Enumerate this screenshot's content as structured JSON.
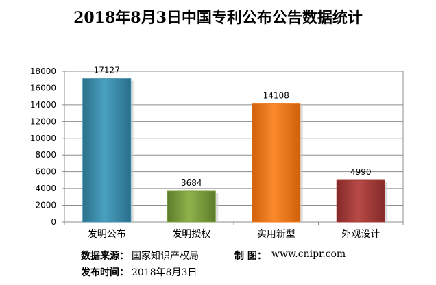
{
  "title": "2018年8月3日中国专利公布公告数据统计",
  "chart_data": {
    "type": "bar",
    "categories": [
      "发明公布",
      "发明授权",
      "实用新型",
      "外观设计"
    ],
    "values": [
      17127,
      3684,
      14108,
      4990
    ],
    "data_labels": [
      "17127",
      "3684",
      "14108",
      "4990"
    ],
    "colors": [
      "#3b8aa8",
      "#7a9e3c",
      "#f07a1a",
      "#a63a38"
    ],
    "ylim": [
      0,
      18000
    ],
    "yticks": [
      0,
      2000,
      4000,
      6000,
      8000,
      10000,
      12000,
      14000,
      16000,
      18000
    ],
    "grid": true,
    "legend": "none"
  },
  "footer": {
    "source_label": "数据来源：",
    "source_value": "国家知识产权局",
    "maker_label": "制  图：",
    "maker_value": "www.cnipr.com",
    "date_label": "发布时间：",
    "date_value": "2018年8月3日"
  }
}
